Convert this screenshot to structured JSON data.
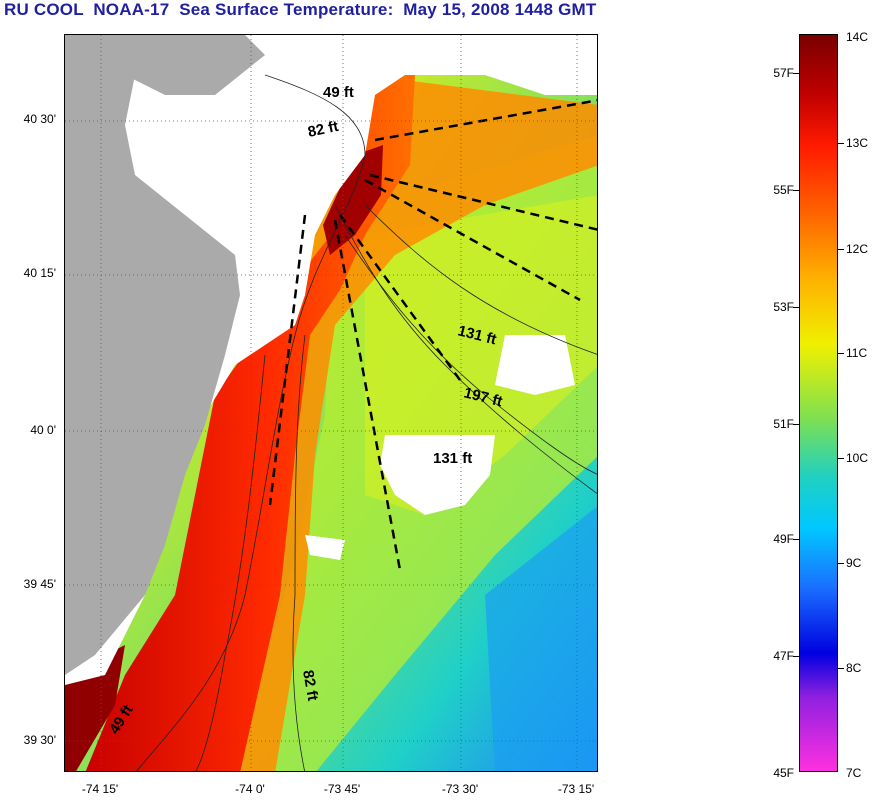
{
  "title": "RU COOL  NOAA-17  Sea Surface Temperature:  May 15, 2008 1448 GMT",
  "lat_labels": [
    "40 30'",
    "40 15'",
    "40 0'",
    "39 45'",
    "39 30'"
  ],
  "lon_labels": [
    "-74 15'",
    "-74 0'",
    "-73 45'",
    "-73 30'",
    "-73 15'"
  ],
  "depth_labels": [
    "49 ft",
    "82 ft",
    "131 ft",
    "197 ft",
    "131 ft",
    "82 ft",
    "49 ft"
  ],
  "colorbar": {
    "fahrenheit": [
      "57F",
      "55F",
      "53F",
      "51F",
      "49F",
      "47F",
      "45F"
    ],
    "celsius": [
      "14C",
      "13C",
      "12C",
      "11C",
      "10C",
      "9C",
      "8C",
      "7C"
    ]
  },
  "colors": {
    "title": "#1f1fa0",
    "land": "#aaaaaa",
    "cloud_mask": "#ffffff"
  }
}
